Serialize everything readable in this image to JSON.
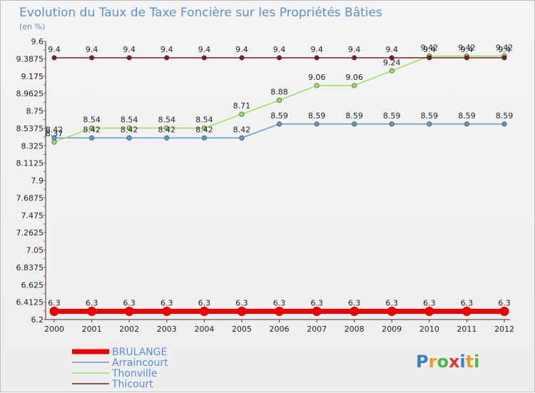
{
  "chart_data": {
    "type": "line",
    "title": "Evolution du Taux de Taxe Foncière sur les Propriétés Bâties",
    "ylabel": "(en %)",
    "xlabel": "",
    "ylim": [
      6.2,
      9.6
    ],
    "yticks": [
      "9.6",
      "9.3875",
      "9.175",
      "8.9625",
      "8.75",
      "8.5375",
      "8.325",
      "8.1125",
      "7.9",
      "7.6875",
      "7.475",
      "7.2625",
      "7.05",
      "6.8375",
      "6.625",
      "6.4125",
      "6.2"
    ],
    "categories": [
      "2000",
      "2001",
      "2002",
      "2003",
      "2004",
      "2005",
      "2006",
      "2007",
      "2008",
      "2009",
      "2010",
      "2011",
      "2012"
    ],
    "series": [
      {
        "name": "BRULANGE",
        "color": "#ee0000",
        "values": [
          6.3,
          6.3,
          6.3,
          6.3,
          6.3,
          6.3,
          6.3,
          6.3,
          6.3,
          6.3,
          6.3,
          6.3,
          6.3
        ],
        "labels": [
          "6.3",
          "6.3",
          "6.3",
          "6.3",
          "6.3",
          "6.3",
          "6.3",
          "6.3",
          "6.3",
          "6.3",
          "6.3",
          "6.3",
          "6.3"
        ]
      },
      {
        "name": "Arraincourt",
        "color": "#5c9ad2",
        "values": [
          8.42,
          8.42,
          8.42,
          8.42,
          8.42,
          8.42,
          8.59,
          8.59,
          8.59,
          8.59,
          8.59,
          8.59,
          8.59
        ],
        "labels": [
          "8.42",
          "8.42",
          "8.42",
          "8.42",
          "8.42",
          "8.42",
          "8.59",
          "8.59",
          "8.59",
          "8.59",
          "8.59",
          "8.59",
          "8.59"
        ]
      },
      {
        "name": "Thonville",
        "color": "#99e060",
        "values": [
          8.37,
          8.54,
          8.54,
          8.54,
          8.54,
          8.71,
          8.88,
          9.06,
          9.06,
          9.24,
          9.42,
          9.42,
          9.42
        ],
        "labels": [
          "8.37",
          "8.54",
          "8.54",
          "8.54",
          "8.54",
          "8.71",
          "8.88",
          "9.06",
          "9.06",
          "9.24",
          "9.42",
          "9.42",
          "9.42"
        ]
      },
      {
        "name": "Thicourt",
        "color": "#7a1f24",
        "values": [
          9.4,
          9.4,
          9.4,
          9.4,
          9.4,
          9.4,
          9.4,
          9.4,
          9.4,
          9.4,
          9.4,
          9.4,
          9.4
        ],
        "labels": [
          "9.4",
          "9.4",
          "9.4",
          "9.4",
          "9.4",
          "9.4",
          "9.4",
          "9.4",
          "9.4",
          "9.4",
          "9.4",
          "9.4",
          "9.4"
        ]
      }
    ],
    "legend_position": "bottom-left",
    "grid": false
  },
  "logo": {
    "text": "Proxiti",
    "letter_colors": [
      "#3a7fd6",
      "#f39a1f",
      "#4cb848",
      "#e6322a",
      "#3a7fd6",
      "#f39a1f",
      "#4cb848"
    ]
  }
}
